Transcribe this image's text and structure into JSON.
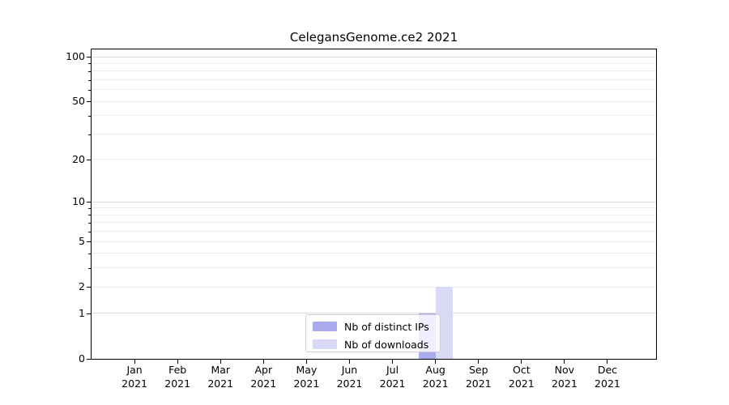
{
  "figure": {
    "background": "#ffffff"
  },
  "chart_data": {
    "type": "bar",
    "title": "CelegansGenome.ce2 2021",
    "x_categories": [
      "Jan",
      "Feb",
      "Mar",
      "Apr",
      "May",
      "Jun",
      "Jul",
      "Aug",
      "Sep",
      "Oct",
      "Nov",
      "Dec"
    ],
    "x_year": "2021",
    "series": [
      {
        "name": "Nb of distinct IPs",
        "color": "#aaaaee",
        "values": [
          0,
          0,
          0,
          0,
          0,
          0,
          0,
          1,
          0,
          0,
          0,
          0
        ]
      },
      {
        "name": "Nb of downloads",
        "color": "#d9d9f6",
        "values": [
          0,
          0,
          0,
          0,
          0,
          0,
          0,
          2,
          0,
          0,
          0,
          0
        ]
      }
    ],
    "xlabel": "",
    "ylabel": "",
    "yscale": "log1p",
    "ylim": [
      0,
      112
    ],
    "yticks": [
      0,
      1,
      2,
      5,
      10,
      20,
      50,
      100
    ],
    "ytick_decades": [
      1,
      10,
      100
    ],
    "yminor_ticks": [
      3,
      4,
      6,
      7,
      8,
      9,
      30,
      40,
      60,
      70,
      80,
      90
    ],
    "grid": {
      "on": true,
      "orientation": "horizontal",
      "minor_color": "#ececec",
      "major_color": "#dbdbdb"
    },
    "legend": {
      "position": "lower center",
      "frame": true
    }
  }
}
